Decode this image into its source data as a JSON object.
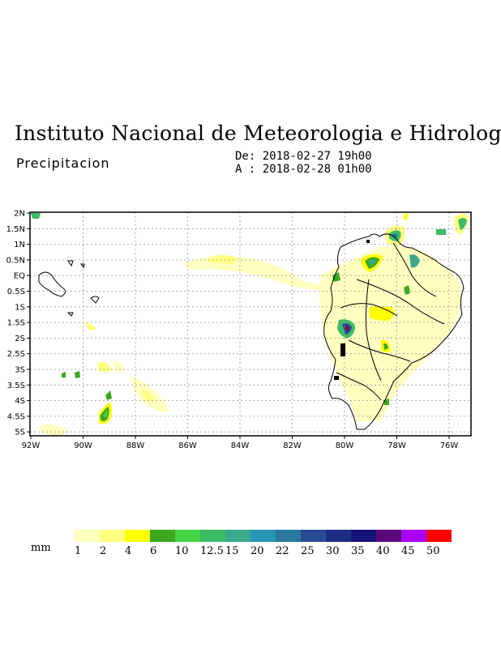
{
  "header": {
    "title": "Instituto Nacional de Meteorologia e Hidrologia",
    "subtitle": "Precipitacion",
    "date_from": "De: 2018-02-27 19h00",
    "date_to": "A : 2018-02-28 01h00"
  },
  "map": {
    "lat_labels": [
      "2N",
      "1.5N",
      "1N",
      "0.5N",
      "EQ",
      "0.5S",
      "1S",
      "1.5S",
      "2S",
      "2.5S",
      "3S",
      "3.5S",
      "4S",
      "4.5S",
      "5S"
    ],
    "lon_labels": [
      "92W",
      "90W",
      "88W",
      "86W",
      "84W",
      "82W",
      "80W",
      "78W",
      "76W"
    ]
  },
  "colorbar": {
    "unit": "mm",
    "labels": [
      "1",
      "2",
      "4",
      "6",
      "10",
      "12.5",
      "15",
      "20",
      "22",
      "25",
      "30",
      "35",
      "40",
      "45",
      "50"
    ],
    "colors": [
      "#ffffc0",
      "#ffff80",
      "#ffff00",
      "#3ca81e",
      "#44d444",
      "#3cbc64",
      "#3ca88c",
      "#2896b4",
      "#2878a0",
      "#284c94",
      "#1e2c84",
      "#141478",
      "#5a0a78",
      "#aa00ff",
      "#ff0000"
    ]
  }
}
